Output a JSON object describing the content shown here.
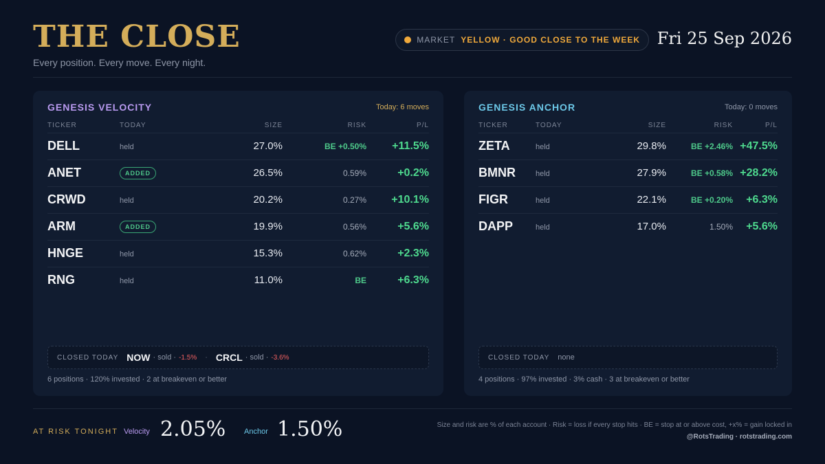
{
  "header": {
    "title": "THE CLOSE",
    "tagline": "Every position. Every move. Every night.",
    "market_label": "MARKET",
    "market_status": "YELLOW · GOOD CLOSE TO THE WEEK",
    "market_color": "#f0a93b",
    "date": "Fri 25 Sep 2026"
  },
  "columns": {
    "ticker": "TICKER",
    "today": "TODAY",
    "size": "SIZE",
    "risk": "RISK",
    "pl": "P/L"
  },
  "velocity": {
    "name": "GENESIS VELOCITY",
    "moves": "Today: 6 moves",
    "color": "#b99af0",
    "positions": [
      {
        "ticker": "DELL",
        "today": "held",
        "size": "27.0%",
        "risk": "BE +0.50%",
        "pl": "+11.5%"
      },
      {
        "ticker": "ANET",
        "today": "ADDED",
        "size": "26.5%",
        "risk": "0.59%",
        "pl": "+0.2%"
      },
      {
        "ticker": "CRWD",
        "today": "held",
        "size": "20.2%",
        "risk": "0.27%",
        "pl": "+10.1%"
      },
      {
        "ticker": "ARM",
        "today": "ADDED",
        "size": "19.9%",
        "risk": "0.56%",
        "pl": "+5.6%"
      },
      {
        "ticker": "HNGE",
        "today": "held",
        "size": "15.3%",
        "risk": "0.62%",
        "pl": "+2.3%"
      },
      {
        "ticker": "RNG",
        "today": "held",
        "size": "11.0%",
        "risk": "BE",
        "pl": "+6.3%"
      }
    ],
    "closed_label": "CLOSED TODAY",
    "closed": [
      {
        "ticker": "NOW",
        "note": "· sold ·",
        "pl": "-1.5%"
      },
      {
        "ticker": "CRCL",
        "note": "· sold ·",
        "pl": "-3.6%"
      }
    ],
    "closed_separator": "·",
    "summary": "6 positions · 120% invested · 2 at breakeven or better"
  },
  "anchor": {
    "name": "GENESIS ANCHOR",
    "moves": "Today: 0 moves",
    "color": "#6cc8e8",
    "positions": [
      {
        "ticker": "ZETA",
        "today": "held",
        "size": "29.8%",
        "risk": "BE +2.46%",
        "pl": "+47.5%"
      },
      {
        "ticker": "BMNR",
        "today": "held",
        "size": "27.9%",
        "risk": "BE +0.58%",
        "pl": "+28.2%"
      },
      {
        "ticker": "FIGR",
        "today": "held",
        "size": "22.1%",
        "risk": "BE +0.20%",
        "pl": "+6.3%"
      },
      {
        "ticker": "DAPP",
        "today": "held",
        "size": "17.0%",
        "risk": "1.50%",
        "pl": "+5.6%"
      }
    ],
    "closed_label": "CLOSED TODAY",
    "closed_none": "none",
    "summary": "4 positions · 97% invested · 3% cash · 3 at breakeven or better"
  },
  "footer": {
    "risk_label": "AT RISK TONIGHT",
    "velocity_label": "Velocity",
    "velocity_value": "2.05%",
    "anchor_label": "Anchor",
    "anchor_value": "1.50%",
    "footnote": "Size and risk are % of each account · Risk = loss if every stop hits · BE = stop at or above cost, +x% = gain locked in",
    "handle": "@RotsTrading · rotstrading.com"
  }
}
